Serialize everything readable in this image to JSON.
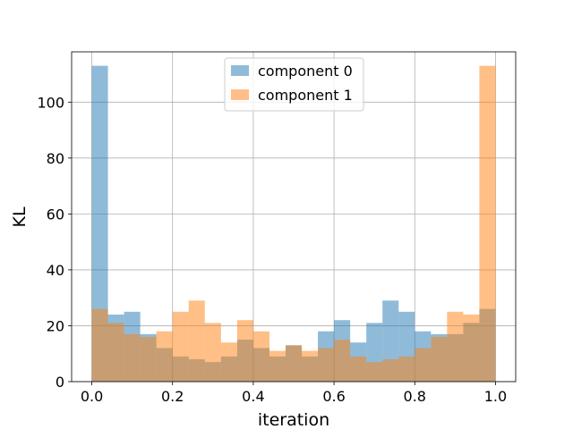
{
  "chart_data": {
    "type": "bar",
    "xlabel": "iteration",
    "ylabel": "KL",
    "xlim": [
      -0.05,
      1.05
    ],
    "ylim": [
      0,
      118
    ],
    "xticks": [
      "0.0",
      "0.2",
      "0.4",
      "0.6",
      "0.8",
      "1.0"
    ],
    "yticks": [
      "0",
      "20",
      "40",
      "60",
      "80",
      "100"
    ],
    "grid": true,
    "legend_position": "top-center",
    "bin_width": 0.04,
    "bin_starts": [
      0.0,
      0.04,
      0.08,
      0.12,
      0.16,
      0.2,
      0.24,
      0.28,
      0.32,
      0.36,
      0.4,
      0.44,
      0.48,
      0.52,
      0.56,
      0.6,
      0.64,
      0.68,
      0.72,
      0.76,
      0.8,
      0.84,
      0.88,
      0.92,
      0.96
    ],
    "series": [
      {
        "name": "component 0",
        "color": "#1f77b4",
        "values": [
          113,
          24,
          25,
          17,
          12,
          9,
          8,
          7,
          9,
          15,
          12,
          9,
          13,
          9,
          18,
          22,
          14,
          21,
          29,
          25,
          18,
          17,
          17,
          21,
          26
        ]
      },
      {
        "name": "component 1",
        "color": "#ff7f0e",
        "values": [
          26,
          21,
          17,
          16,
          18,
          25,
          29,
          21,
          14,
          22,
          18,
          11,
          13,
          11,
          12,
          15,
          9,
          7,
          8,
          9,
          12,
          16,
          25,
          24,
          113
        ]
      }
    ]
  }
}
